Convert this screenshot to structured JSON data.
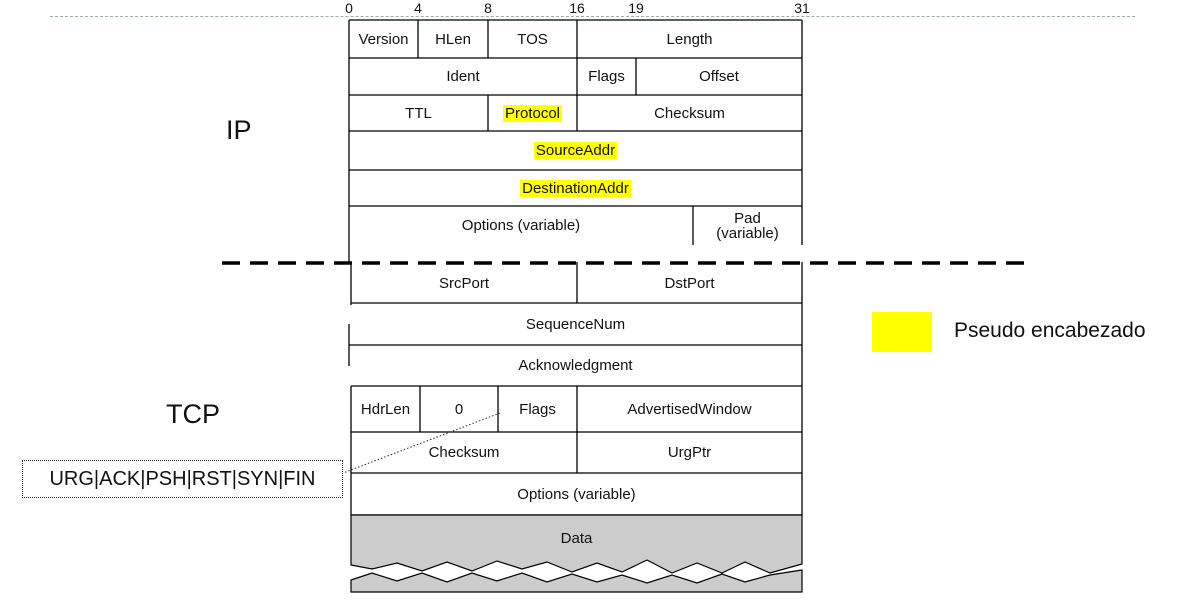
{
  "bit_labels": [
    "0",
    "4",
    "8",
    "16",
    "19",
    "31"
  ],
  "section_labels": {
    "ip": "IP",
    "tcp": "TCP"
  },
  "ip": {
    "version": "Version",
    "hlen": "HLen",
    "tos": "TOS",
    "length": "Length",
    "ident": "Ident",
    "flags": "Flags",
    "offset": "Offset",
    "ttl": "TTL",
    "protocol": "Protocol",
    "checksum": "Checksum",
    "source_addr": "SourceAddr",
    "destination_addr": "DestinationAddr",
    "options": "Options (variable)",
    "pad_line1": "Pad",
    "pad_line2": "(variable)"
  },
  "tcp": {
    "src_port": "SrcPort",
    "dst_port": "DstPort",
    "sequence_num": "SequenceNum",
    "acknowledgment": "Acknowledgment",
    "hdr_len": "HdrLen",
    "zero": "0",
    "flags": "Flags",
    "advertised_window": "AdvertisedWindow",
    "checksum": "Checksum",
    "urg_ptr": "UrgPtr",
    "options": "Options (variable)",
    "data": "Data"
  },
  "flags_callout": "URG|ACK|PSH|RST|SYN|FIN",
  "legend": {
    "label": "Pseudo encabezado",
    "color": "#ffff00"
  },
  "colors": {
    "highlight": "#ffff00",
    "data_fill": "#cccccc",
    "grid": "#000000"
  }
}
